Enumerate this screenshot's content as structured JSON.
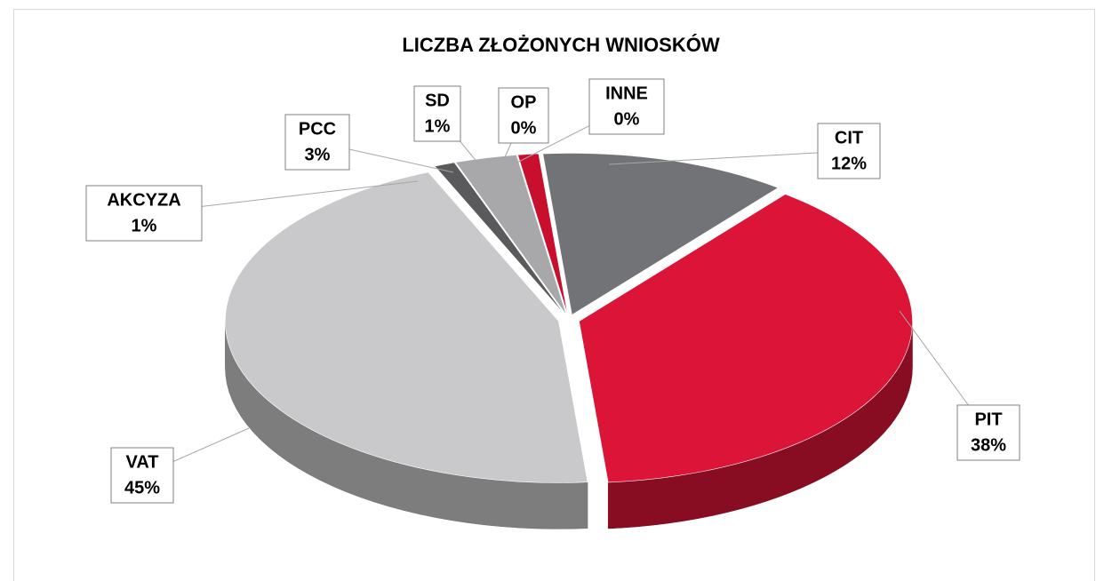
{
  "chart_data": {
    "type": "pie",
    "title": "LICZBA ZŁOŻONYCH WNIOSKÓW",
    "categories": [
      "CIT",
      "PIT",
      "VAT",
      "AKCYZA",
      "PCC",
      "SD",
      "OP",
      "INNE"
    ],
    "values": [
      12,
      38,
      45,
      1,
      3,
      1,
      0,
      0
    ],
    "value_labels": [
      "12%",
      "38%",
      "45%",
      "1%",
      "3%",
      "1%",
      "0%",
      "0%"
    ],
    "colors": [
      "#727377",
      "#dc1437",
      "#c9c9cb",
      "#5a5a5c",
      "#a8a8aa",
      "#c8102e",
      "#f07f7f",
      "#9a9a9c"
    ],
    "legend": false
  }
}
